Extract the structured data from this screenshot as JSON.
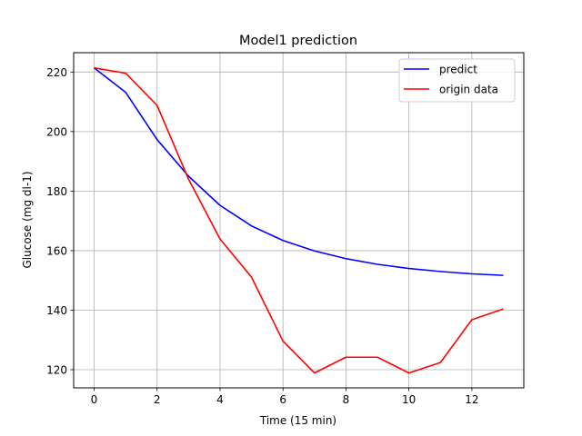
{
  "chart_data": {
    "type": "line",
    "title": "Model1 prediction",
    "xlabel": "Time (15 min)",
    "ylabel": "Glucose (mg dl-1)",
    "xlim": [
      -0.65,
      13.65
    ],
    "ylim": [
      113.9,
      226.5
    ],
    "xticks": [
      0,
      2,
      4,
      6,
      8,
      10,
      12
    ],
    "yticks": [
      120,
      140,
      160,
      180,
      200,
      220
    ],
    "grid": true,
    "legend_position": "top-right",
    "x": [
      0,
      1,
      2,
      3,
      4,
      5,
      6,
      7,
      8,
      9,
      10,
      11,
      12,
      13
    ],
    "series": [
      {
        "name": "predict",
        "color": "#0000ff",
        "values": [
          221.4,
          213.2,
          197.3,
          185.0,
          175.2,
          168.3,
          163.4,
          159.9,
          157.3,
          155.4,
          154.0,
          153.0,
          152.2,
          151.7
        ]
      },
      {
        "name": "origin data",
        "color": "#ff0000",
        "values": [
          221.4,
          219.6,
          208.8,
          184.0,
          163.9,
          151.1,
          129.6,
          118.9,
          124.2,
          124.2,
          118.9,
          122.4,
          136.8,
          140.4
        ]
      }
    ]
  }
}
